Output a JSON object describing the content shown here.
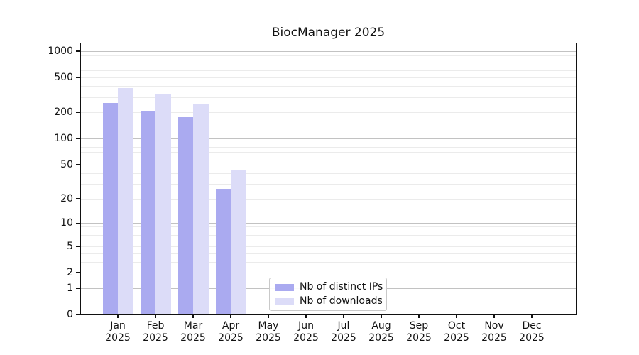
{
  "title": "BiocManager 2025",
  "chart_data": {
    "type": "bar",
    "title": "BiocManager 2025",
    "scale": "log1p (symlog-like y axis)",
    "grid": "horizontal major + minor log gridlines on",
    "legend_position": "inside plot, lower center",
    "categories": [
      "Jan",
      "Feb",
      "Mar",
      "Apr",
      "May",
      "Jun",
      "Jul",
      "Aug",
      "Sep",
      "Oct",
      "Nov",
      "Dec"
    ],
    "year_label": "2025",
    "series": [
      {
        "name": "Nb of distinct IPs",
        "color": "#aaaaf0",
        "values": [
          255,
          210,
          175,
          26,
          null,
          null,
          null,
          null,
          null,
          null,
          null,
          null
        ]
      },
      {
        "name": "Nb of downloads",
        "color": "#dcdcf8",
        "values": [
          380,
          320,
          250,
          43,
          null,
          null,
          null,
          null,
          null,
          null,
          null,
          null
        ]
      }
    ],
    "yticks": [
      0,
      1,
      2,
      5,
      10,
      20,
      50,
      100,
      200,
      500,
      1000
    ],
    "ylim": [
      0,
      1250
    ],
    "xlabel": "",
    "ylabel": ""
  },
  "colors": {
    "major_gridline": "#c2c2c2",
    "minor_gridline": "#ebebeb",
    "axis": "#111111",
    "background": "#ffffff"
  }
}
